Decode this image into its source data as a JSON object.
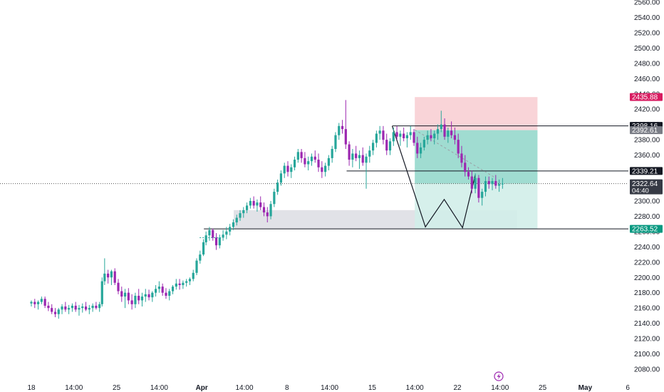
{
  "chart_data": {
    "type": "candlestick",
    "title": "",
    "xlabel": "",
    "ylabel": "",
    "ylim": [
      2070,
      2560
    ],
    "y_ticks": [
      "2080.00",
      "2100.00",
      "2120.00",
      "2140.00",
      "2160.00",
      "2180.00",
      "2200.00",
      "2220.00",
      "2240.00",
      "2260.00",
      "2280.00",
      "2300.00",
      "2320.00",
      "2340.00",
      "2360.00",
      "2380.00",
      "2400.00",
      "2420.00",
      "2440.00",
      "2460.00",
      "2480.00",
      "2500.00",
      "2520.00",
      "2540.00",
      "2560.00"
    ],
    "x_ticks": [
      {
        "label": "18",
        "t": 0
      },
      {
        "label": "14:00",
        "t": 1
      },
      {
        "label": "25",
        "t": 2
      },
      {
        "label": "14:00",
        "t": 3
      },
      {
        "label": "Apr",
        "t": 4
      },
      {
        "label": "14:00",
        "t": 5
      },
      {
        "label": "8",
        "t": 6
      },
      {
        "label": "14:00",
        "t": 7
      },
      {
        "label": "15",
        "t": 8
      },
      {
        "label": "14:00",
        "t": 9
      },
      {
        "label": "22",
        "t": 10
      },
      {
        "label": "14:00",
        "t": 11
      },
      {
        "label": "25",
        "t": 12
      },
      {
        "label": "May",
        "t": 13
      },
      {
        "label": "6",
        "t": 14
      }
    ],
    "grid": false,
    "colors": {
      "up": "#26a69a",
      "down": "#9c27b0",
      "stop_zone": "#f7c6cb",
      "target_zone": "#8fd6c9",
      "target_zone_light": "#d2eee9",
      "demand_zone": "#dcdde3",
      "current_price": "#363a45",
      "stop_tag": "#d81b60",
      "target_tag": "#089981"
    },
    "price_levels": [
      {
        "name": "stop",
        "value": 2435.88
      },
      {
        "name": "resistance",
        "value": 2398.16
      },
      {
        "name": "entry",
        "value": 2392.61
      },
      {
        "name": "level",
        "value": 2339.21
      },
      {
        "name": "target",
        "value": 2263.52
      }
    ],
    "current_price": {
      "value": 2322.64,
      "countdown": "04:40"
    },
    "zones": [
      {
        "name": "demand",
        "t_start": 4.75,
        "t_end": 11.4,
        "y_top": 2288,
        "y_bottom": 2263.5
      },
      {
        "name": "stop-zone",
        "t_start": 9.0,
        "t_end": 11.88,
        "y_top": 2435.88,
        "y_bottom": 2392.61
      },
      {
        "name": "target-zone",
        "t_start": 9.0,
        "t_end": 11.88,
        "y_top": 2392.61,
        "y_bottom": 2263.52
      }
    ],
    "pattern_path": [
      {
        "t": 8.47,
        "v": 2398
      },
      {
        "t": 9.25,
        "v": 2266
      },
      {
        "t": 9.69,
        "v": 2302
      },
      {
        "t": 10.12,
        "v": 2265
      },
      {
        "t": 10.42,
        "v": 2334
      }
    ],
    "trend_line": [
      {
        "t": 9.0,
        "v": 2393
      },
      {
        "t": 10.9,
        "v": 2330
      }
    ],
    "candles": [
      [
        0.0,
        2166,
        2170,
        2162,
        2168
      ],
      [
        0.08,
        2168,
        2172,
        2160,
        2165
      ],
      [
        0.16,
        2165,
        2170,
        2158,
        2168
      ],
      [
        0.24,
        2168,
        2175,
        2165,
        2172
      ],
      [
        0.32,
        2172,
        2175,
        2160,
        2163
      ],
      [
        0.4,
        2163,
        2168,
        2156,
        2160
      ],
      [
        0.48,
        2160,
        2165,
        2152,
        2155
      ],
      [
        0.56,
        2155,
        2160,
        2148,
        2152
      ],
      [
        0.64,
        2152,
        2160,
        2146,
        2158
      ],
      [
        0.72,
        2158,
        2165,
        2152,
        2162
      ],
      [
        0.8,
        2162,
        2168,
        2155,
        2158
      ],
      [
        0.88,
        2158,
        2164,
        2152,
        2160
      ],
      [
        0.96,
        2160,
        2166,
        2155,
        2163
      ],
      [
        1.04,
        2163,
        2168,
        2155,
        2158
      ],
      [
        1.12,
        2158,
        2164,
        2150,
        2160
      ],
      [
        1.2,
        2160,
        2166,
        2154,
        2162
      ],
      [
        1.28,
        2162,
        2168,
        2156,
        2158
      ],
      [
        1.36,
        2158,
        2164,
        2152,
        2160
      ],
      [
        1.44,
        2160,
        2166,
        2155,
        2163
      ],
      [
        1.52,
        2163,
        2168,
        2158,
        2160
      ],
      [
        1.6,
        2160,
        2168,
        2155,
        2165
      ],
      [
        1.66,
        2165,
        2200,
        2162,
        2195
      ],
      [
        1.72,
        2195,
        2225,
        2190,
        2205
      ],
      [
        1.8,
        2205,
        2210,
        2192,
        2200
      ],
      [
        1.88,
        2200,
        2210,
        2190,
        2208
      ],
      [
        1.96,
        2208,
        2212,
        2190,
        2193
      ],
      [
        2.04,
        2193,
        2198,
        2178,
        2182
      ],
      [
        2.12,
        2182,
        2188,
        2168,
        2175
      ],
      [
        2.2,
        2175,
        2185,
        2160,
        2180
      ],
      [
        2.28,
        2180,
        2186,
        2165,
        2170
      ],
      [
        2.36,
        2170,
        2178,
        2158,
        2165
      ],
      [
        2.44,
        2165,
        2180,
        2160,
        2176
      ],
      [
        2.52,
        2176,
        2185,
        2165,
        2170
      ],
      [
        2.6,
        2170,
        2180,
        2162,
        2175
      ],
      [
        2.68,
        2175,
        2185,
        2168,
        2178
      ],
      [
        2.76,
        2178,
        2184,
        2170,
        2174
      ],
      [
        2.84,
        2174,
        2182,
        2168,
        2180
      ],
      [
        2.92,
        2180,
        2190,
        2175,
        2185
      ],
      [
        3.0,
        2185,
        2195,
        2180,
        2188
      ],
      [
        3.08,
        2188,
        2192,
        2176,
        2180
      ],
      [
        3.16,
        2180,
        2186,
        2172,
        2176
      ],
      [
        3.24,
        2176,
        2185,
        2170,
        2182
      ],
      [
        3.32,
        2182,
        2190,
        2178,
        2188
      ],
      [
        3.4,
        2188,
        2198,
        2184,
        2192
      ],
      [
        3.48,
        2192,
        2198,
        2184,
        2190
      ],
      [
        3.56,
        2190,
        2196,
        2185,
        2193
      ],
      [
        3.64,
        2193,
        2198,
        2188,
        2195
      ],
      [
        3.72,
        2195,
        2200,
        2190,
        2198
      ],
      [
        3.8,
        2198,
        2210,
        2195,
        2206
      ],
      [
        3.88,
        2206,
        2225,
        2203,
        2222
      ],
      [
        3.96,
        2222,
        2235,
        2218,
        2230
      ],
      [
        4.04,
        2230,
        2250,
        2228,
        2246
      ],
      [
        4.1,
        2246,
        2260,
        2242,
        2255
      ],
      [
        4.18,
        2255,
        2266,
        2248,
        2262
      ],
      [
        4.26,
        2262,
        2264,
        2248,
        2252
      ],
      [
        4.34,
        2252,
        2258,
        2236,
        2242
      ],
      [
        4.42,
        2242,
        2256,
        2238,
        2252
      ],
      [
        4.5,
        2252,
        2262,
        2248,
        2256
      ],
      [
        4.58,
        2256,
        2266,
        2250,
        2260
      ],
      [
        4.66,
        2260,
        2270,
        2255,
        2266
      ],
      [
        4.74,
        2266,
        2276,
        2262,
        2272
      ],
      [
        4.82,
        2272,
        2282,
        2268,
        2278
      ],
      [
        4.9,
        2278,
        2288,
        2274,
        2284
      ],
      [
        4.98,
        2284,
        2292,
        2278,
        2288
      ],
      [
        5.06,
        2288,
        2298,
        2284,
        2294
      ],
      [
        5.14,
        2294,
        2304,
        2290,
        2300
      ],
      [
        5.22,
        2300,
        2306,
        2290,
        2294
      ],
      [
        5.3,
        2294,
        2302,
        2286,
        2298
      ],
      [
        5.38,
        2298,
        2306,
        2288,
        2292
      ],
      [
        5.46,
        2292,
        2298,
        2280,
        2285
      ],
      [
        5.54,
        2285,
        2292,
        2272,
        2280
      ],
      [
        5.62,
        2280,
        2300,
        2276,
        2296
      ],
      [
        5.7,
        2296,
        2316,
        2292,
        2312
      ],
      [
        5.78,
        2312,
        2328,
        2308,
        2324
      ],
      [
        5.86,
        2324,
        2340,
        2320,
        2336
      ],
      [
        5.94,
        2336,
        2350,
        2330,
        2346
      ],
      [
        6.02,
        2346,
        2352,
        2332,
        2338
      ],
      [
        6.1,
        2338,
        2348,
        2330,
        2344
      ],
      [
        6.18,
        2344,
        2358,
        2340,
        2354
      ],
      [
        6.26,
        2354,
        2368,
        2350,
        2364
      ],
      [
        6.34,
        2364,
        2368,
        2350,
        2356
      ],
      [
        6.42,
        2356,
        2364,
        2344,
        2348
      ],
      [
        6.5,
        2348,
        2358,
        2340,
        2352
      ],
      [
        6.58,
        2352,
        2362,
        2346,
        2358
      ],
      [
        6.66,
        2358,
        2366,
        2350,
        2354
      ],
      [
        6.74,
        2354,
        2362,
        2338,
        2344
      ],
      [
        6.82,
        2344,
        2352,
        2330,
        2338
      ],
      [
        6.9,
        2338,
        2350,
        2332,
        2346
      ],
      [
        6.98,
        2346,
        2360,
        2340,
        2356
      ],
      [
        7.06,
        2356,
        2372,
        2350,
        2368
      ],
      [
        7.14,
        2368,
        2390,
        2364,
        2386
      ],
      [
        7.22,
        2386,
        2402,
        2380,
        2398
      ],
      [
        7.3,
        2398,
        2406,
        2388,
        2394
      ],
      [
        7.38,
        2394,
        2432,
        2368,
        2374
      ],
      [
        7.46,
        2374,
        2378,
        2346,
        2354
      ],
      [
        7.54,
        2354,
        2368,
        2344,
        2362
      ],
      [
        7.62,
        2362,
        2372,
        2352,
        2356
      ],
      [
        7.7,
        2356,
        2366,
        2342,
        2360
      ],
      [
        7.78,
        2360,
        2370,
        2346,
        2350
      ],
      [
        7.86,
        2350,
        2362,
        2316,
        2358
      ],
      [
        7.94,
        2358,
        2372,
        2350,
        2366
      ],
      [
        8.02,
        2366,
        2380,
        2360,
        2376
      ],
      [
        8.1,
        2376,
        2392,
        2370,
        2388
      ],
      [
        8.18,
        2388,
        2398,
        2380,
        2392
      ],
      [
        8.26,
        2392,
        2398,
        2374,
        2380
      ],
      [
        8.34,
        2380,
        2388,
        2360,
        2366
      ],
      [
        8.42,
        2366,
        2382,
        2360,
        2378
      ],
      [
        8.5,
        2378,
        2396,
        2372,
        2390
      ],
      [
        8.58,
        2390,
        2398,
        2380,
        2384
      ],
      [
        8.66,
        2384,
        2392,
        2372,
        2388
      ],
      [
        8.74,
        2388,
        2396,
        2378,
        2382
      ],
      [
        8.82,
        2382,
        2390,
        2370,
        2386
      ],
      [
        8.9,
        2386,
        2398,
        2380,
        2390
      ],
      [
        8.98,
        2390,
        2394,
        2372,
        2376
      ],
      [
        9.06,
        2376,
        2384,
        2356,
        2362
      ],
      [
        9.14,
        2362,
        2376,
        2356,
        2370
      ],
      [
        9.22,
        2370,
        2384,
        2366,
        2380
      ],
      [
        9.3,
        2380,
        2392,
        2374,
        2386
      ],
      [
        9.38,
        2386,
        2394,
        2378,
        2382
      ],
      [
        9.46,
        2382,
        2392,
        2374,
        2388
      ],
      [
        9.54,
        2388,
        2400,
        2380,
        2394
      ],
      [
        9.62,
        2394,
        2418,
        2390,
        2400
      ],
      [
        9.7,
        2400,
        2408,
        2380,
        2384
      ],
      [
        9.78,
        2384,
        2396,
        2376,
        2392
      ],
      [
        9.86,
        2392,
        2404,
        2382,
        2386
      ],
      [
        9.94,
        2386,
        2396,
        2374,
        2380
      ],
      [
        10.02,
        2380,
        2388,
        2356,
        2362
      ],
      [
        10.1,
        2362,
        2372,
        2344,
        2350
      ],
      [
        10.18,
        2350,
        2360,
        2332,
        2338
      ],
      [
        10.26,
        2338,
        2344,
        2328,
        2332
      ],
      [
        10.34,
        2332,
        2340,
        2310,
        2316
      ],
      [
        10.42,
        2316,
        2336,
        2310,
        2330
      ],
      [
        10.5,
        2330,
        2334,
        2298,
        2304
      ],
      [
        10.58,
        2304,
        2316,
        2294,
        2312
      ],
      [
        10.66,
        2312,
        2332,
        2306,
        2326
      ],
      [
        10.74,
        2326,
        2332,
        2316,
        2322
      ],
      [
        10.82,
        2322,
        2330,
        2314,
        2326
      ],
      [
        10.9,
        2326,
        2334,
        2316,
        2320
      ],
      [
        10.98,
        2320,
        2328,
        2312,
        2322
      ],
      [
        11.06,
        2322,
        2330,
        2316,
        2322.64
      ]
    ]
  }
}
